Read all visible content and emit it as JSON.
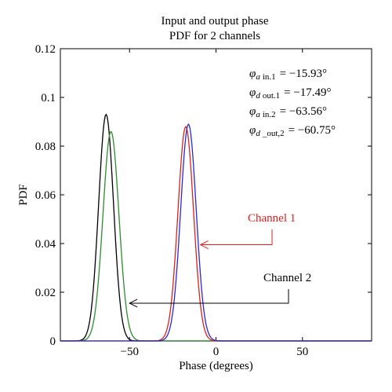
{
  "chart_data": {
    "type": "line",
    "title": [
      "Input and output phase",
      "PDF for 2 channels"
    ],
    "xlabel": "Phase (degrees)",
    "ylabel": "PDF",
    "xlim": [
      -90,
      90
    ],
    "ylim": [
      0,
      0.12
    ],
    "xticks": [
      -50,
      0,
      50
    ],
    "yticks": [
      0,
      0.02,
      0.04,
      0.06,
      0.08,
      0.1,
      0.12
    ],
    "ytick_labels": [
      "0",
      "0.02",
      "0.04",
      "0.06",
      "0.08",
      "0.1",
      "0.12"
    ],
    "xtick_labels": [
      "−50",
      "0",
      "50"
    ],
    "grid": false,
    "series": [
      {
        "channel": 2,
        "color": "#000000",
        "peak_x": -63.56,
        "peak_y": 0.093,
        "sigma": 4.3
      },
      {
        "channel": 2,
        "color": "#2e8b2e",
        "peak_x": -60.75,
        "peak_y": 0.086,
        "sigma": 4.6
      },
      {
        "channel": 1,
        "color": "#e02020",
        "peak_x": -17.49,
        "peak_y": 0.088,
        "sigma": 4.5
      },
      {
        "channel": 1,
        "color": "#2a2ad0",
        "peak_x": -15.93,
        "peak_y": 0.089,
        "sigma": 4.5
      }
    ],
    "annotations": {
      "lines": [
        {
          "sym": "φ",
          "sub_sym": "a",
          "sub": "in.1",
          "value": "= −15.93°"
        },
        {
          "sym": "φ",
          "sub_sym": "d",
          "sub": "out.1",
          "value": "= −17.49°"
        },
        {
          "sym": "φ",
          "sub_sym": "a",
          "sub": "in.2",
          "value": "= −63.56°"
        },
        {
          "sym": "φ",
          "sub_sym": "d",
          "sub": "_out,2",
          "value": "= −60.75°"
        }
      ]
    },
    "labels": {
      "channel1": {
        "text": "Channel 1",
        "color": "#e02020",
        "arrow_to": [
          -9,
          0.0395
        ]
      },
      "channel2": {
        "text": "Channel 2",
        "color": "#000000",
        "arrow_to": [
          -50,
          0.0155
        ]
      }
    }
  }
}
